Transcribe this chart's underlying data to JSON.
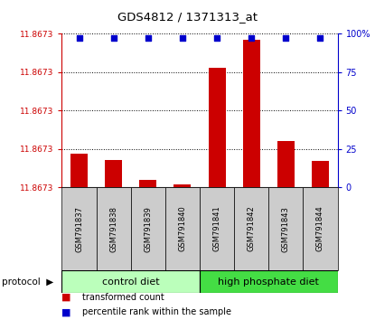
{
  "title": "GDS4812 / 1371313_at",
  "samples": [
    "GSM791837",
    "GSM791838",
    "GSM791839",
    "GSM791840",
    "GSM791841",
    "GSM791842",
    "GSM791843",
    "GSM791844"
  ],
  "red_bar_values": [
    22,
    18,
    5,
    2,
    78,
    96,
    30,
    17
  ],
  "blue_dot_values": [
    97,
    97,
    97,
    97,
    97,
    97,
    97,
    97
  ],
  "groups": [
    {
      "label": "control diet",
      "color": "#bbffbb",
      "start": 0,
      "end": 4
    },
    {
      "label": "high phosphate diet",
      "color": "#44dd44",
      "start": 4,
      "end": 8
    }
  ],
  "red_color": "#cc0000",
  "blue_color": "#0000cc",
  "legend_red": "transformed count",
  "legend_blue": "percentile rank within the sample",
  "label_box_color": "#cccccc"
}
